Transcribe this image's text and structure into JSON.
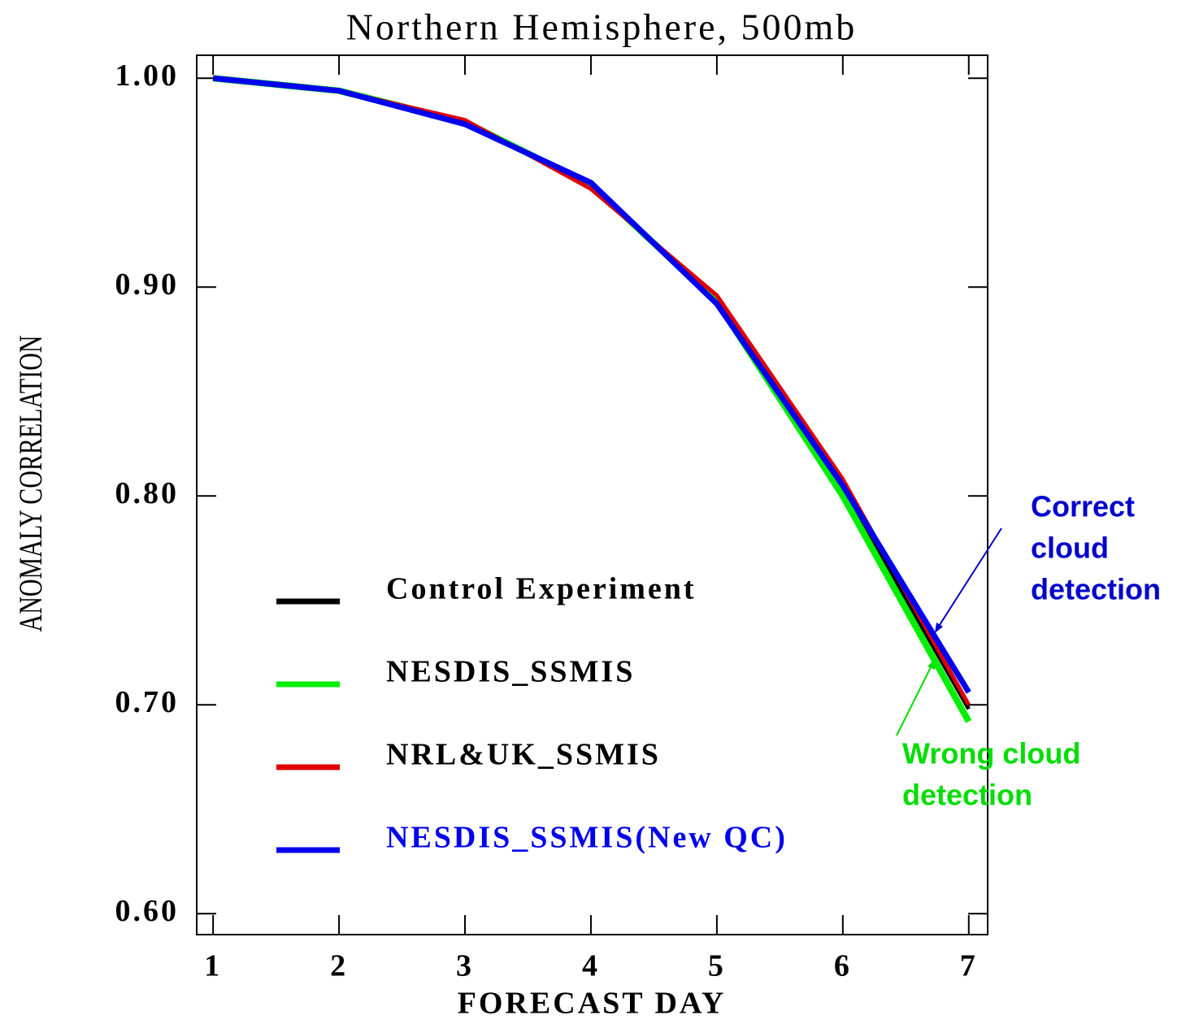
{
  "chart_data": {
    "type": "line",
    "title": "Northern Hemisphere, 500mb",
    "x_label": "FORECAST DAY",
    "y_label": "ANOMALY CORRELATION",
    "x": [
      1,
      2,
      3,
      4,
      5,
      6,
      7
    ],
    "series": [
      {
        "name": "Control Experiment",
        "color": "#000000",
        "label_color": "#000000",
        "values": [
          1.0,
          0.994,
          0.979,
          0.949,
          0.894,
          0.804,
          0.698
        ]
      },
      {
        "name": "NESDIS_SSMIS",
        "color": "#00ee00",
        "label_color": "#000000",
        "values": [
          1.0,
          0.994,
          0.979,
          0.949,
          0.893,
          0.8,
          0.692
        ]
      },
      {
        "name": "NRL&UK_SSMIS",
        "color": "#e00000",
        "label_color": "#000000",
        "values": [
          1.0,
          0.994,
          0.98,
          0.947,
          0.896,
          0.808,
          0.7
        ]
      },
      {
        "name": "NESDIS_SSMIS(New QC)",
        "color": "#0000ee",
        "label_color": "#0000ee",
        "values": [
          1.0,
          0.994,
          0.978,
          0.95,
          0.892,
          0.805,
          0.706
        ]
      }
    ],
    "xlim": [
      0.87,
      7.15
    ],
    "ylim": [
      0.59,
      1.011
    ],
    "xticks": [
      1,
      2,
      3,
      4,
      5,
      6,
      7
    ],
    "yticks": [
      {
        "value": 0.6,
        "label": "0.60"
      },
      {
        "value": 0.7,
        "label": "0.70"
      },
      {
        "value": 0.8,
        "label": "0.80"
      },
      {
        "value": 0.9,
        "label": "0.90"
      },
      {
        "value": 1.0,
        "label": "1.00"
      }
    ],
    "annotations": [
      {
        "lines": [
          "Correct",
          "cloud",
          "detection"
        ],
        "color": "#0000cc"
      },
      {
        "lines": [
          "Wrong cloud",
          "detection"
        ],
        "color": "#00dd00"
      }
    ]
  }
}
